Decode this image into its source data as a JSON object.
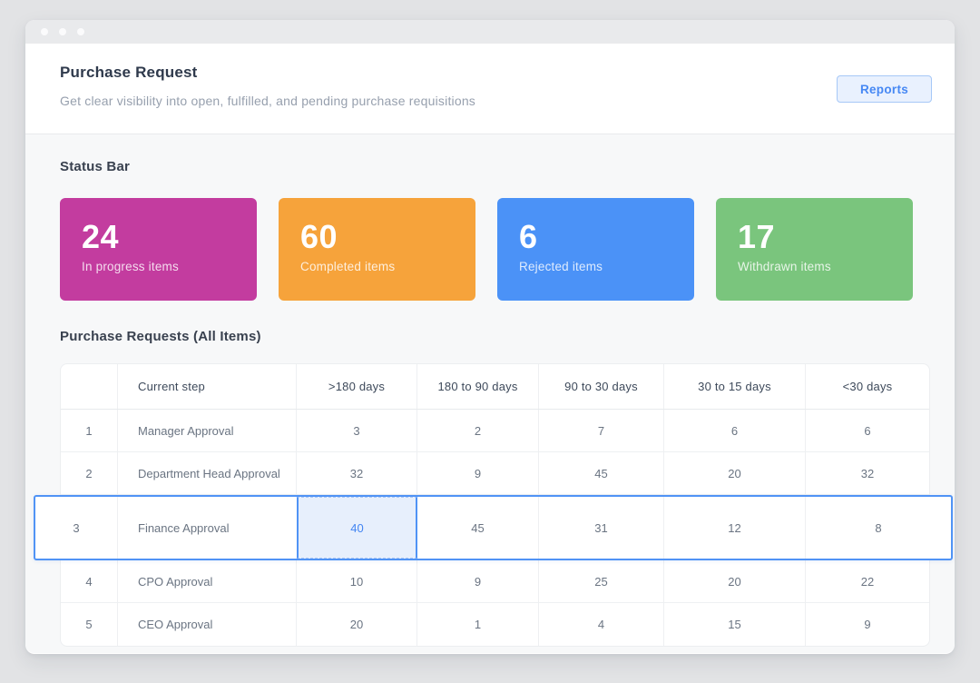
{
  "header": {
    "title": "Purchase Request",
    "subtitle": "Get clear visibility into open, fulfilled, and pending purchase requisitions",
    "reports_button": "Reports"
  },
  "status_section": {
    "heading": "Status Bar",
    "cards": [
      {
        "value": "24",
        "label": "In progress items",
        "color": "#c33c9f"
      },
      {
        "value": "60",
        "label": "Completed items",
        "color": "#f6a33b"
      },
      {
        "value": "6",
        "label": "Rejected items",
        "color": "#4b92f7"
      },
      {
        "value": "17",
        "label": "Withdrawn items",
        "color": "#7ac57d"
      }
    ]
  },
  "table_section": {
    "heading": "Purchase Requests (All Items)",
    "columns": [
      "",
      "Current step",
      ">180 days",
      "180 to 90 days",
      "90 to 30 days",
      "30 to 15 days",
      "<30 days"
    ],
    "rows": [
      {
        "num": "1",
        "step": "Manager Approval",
        "values": [
          "3",
          "2",
          "7",
          "6",
          "6"
        ]
      },
      {
        "num": "2",
        "step": "Department Head Approval",
        "values": [
          "32",
          "9",
          "45",
          "20",
          "32"
        ]
      },
      {
        "num": "3",
        "step": "Finance Approval",
        "values": [
          "40",
          "45",
          "31",
          "12",
          "8"
        ],
        "selected": true,
        "highlighted_value": "40"
      },
      {
        "num": "4",
        "step": "CPO Approval",
        "values": [
          "10",
          "9",
          "25",
          "20",
          "22"
        ]
      },
      {
        "num": "5",
        "step": "CEO Approval",
        "values": [
          "20",
          "1",
          "4",
          "15",
          "9"
        ]
      }
    ],
    "selection": {
      "row_step": "Finance Approval",
      "highlight_color": "#5093f5",
      "highlight_cell_bg": "#e7effc"
    }
  }
}
